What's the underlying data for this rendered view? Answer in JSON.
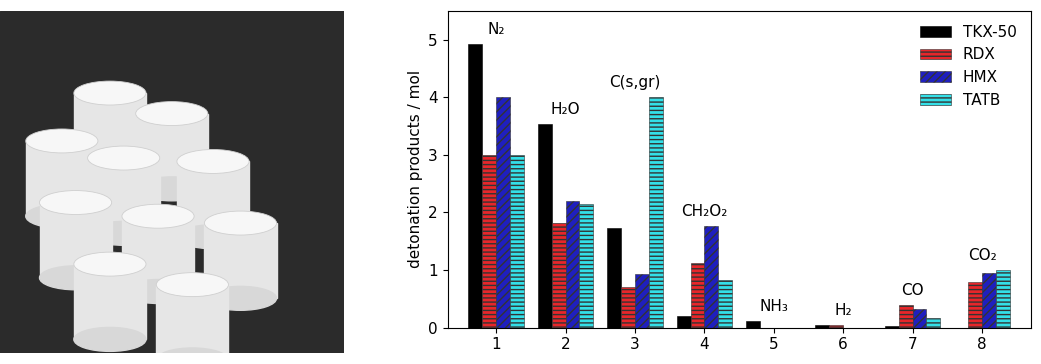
{
  "chart_data": {
    "type": "bar",
    "x": [
      1,
      2,
      3,
      4,
      5,
      6,
      7,
      8
    ],
    "y_label": "detonation products / mol",
    "xlim": [
      0.3,
      8.7
    ],
    "xticks": [
      1,
      2,
      3,
      4,
      5,
      6,
      7,
      8
    ],
    "ylim": [
      0,
      5.5
    ],
    "yticks": [
      0,
      1,
      2,
      3,
      4,
      5
    ],
    "legend": "upper right",
    "annotations": [
      {
        "x": 1,
        "text": "N₂"
      },
      {
        "x": 2,
        "text": "H₂O"
      },
      {
        "x": 3,
        "text": "C(s,gr)"
      },
      {
        "x": 4,
        "text": "CH₂O₂"
      },
      {
        "x": 5,
        "text": "NH₃"
      },
      {
        "x": 6,
        "text": "H₂"
      },
      {
        "x": 7,
        "text": "CO"
      },
      {
        "x": 8,
        "text": "CO₂"
      }
    ],
    "series": [
      {
        "name": "TKX-50",
        "color": "#000000",
        "values": [
          4.93,
          3.53,
          1.73,
          0.2,
          0.12,
          0.04,
          0.03,
          0.0
        ]
      },
      {
        "name": "RDX",
        "color": "#e8262a",
        "values": [
          3.0,
          1.82,
          0.7,
          1.13,
          0.0,
          0.05,
          0.4,
          0.79
        ]
      },
      {
        "name": "HMX",
        "color": "#1f1fbf",
        "values": [
          4.0,
          2.2,
          0.93,
          1.77,
          0.0,
          0.0,
          0.33,
          0.95
        ]
      },
      {
        "name": "TATB",
        "color": "#33e0e8",
        "values": [
          3.0,
          2.15,
          4.0,
          0.83,
          0.0,
          0.0,
          0.16,
          1.0
        ]
      }
    ]
  }
}
